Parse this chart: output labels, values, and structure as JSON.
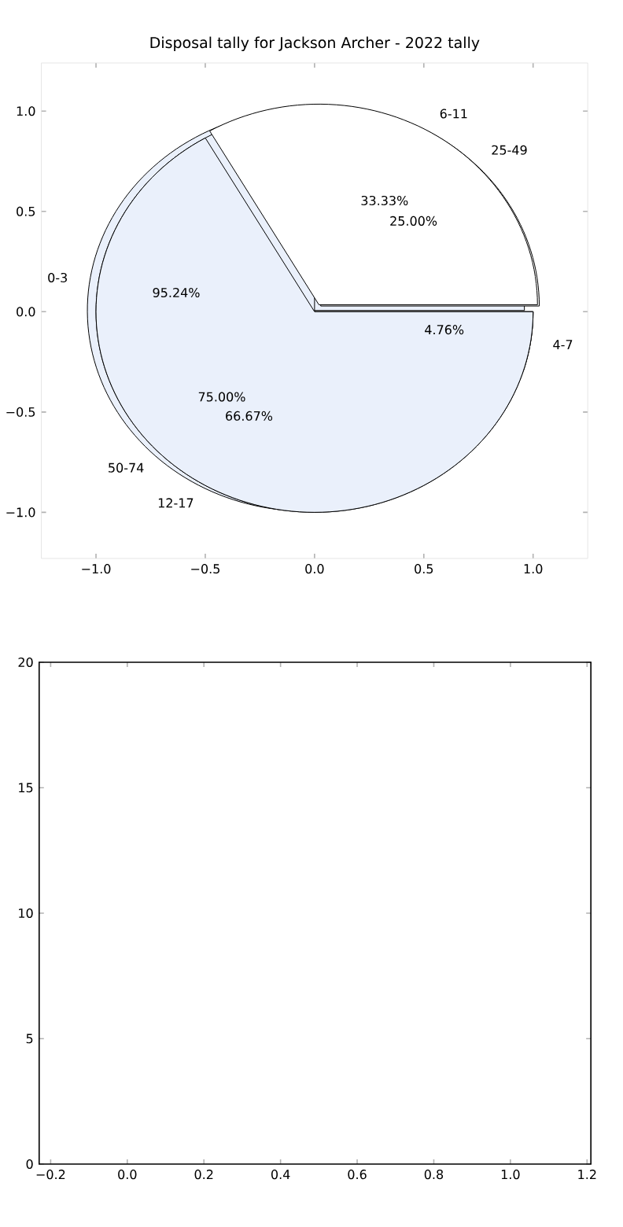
{
  "chart_data": [
    {
      "type": "scatter",
      "title": "Disposal tally for Jackson Archer - 2022 tally",
      "xlim": [
        -1.25,
        1.25
      ],
      "ylim": [
        -1.23,
        1.24
      ],
      "xticks": [
        {
          "value": -1.0,
          "label": "−1.0"
        },
        {
          "value": -0.5,
          "label": "−0.5"
        },
        {
          "value": 0.0,
          "label": "0.0"
        },
        {
          "value": 0.5,
          "label": "0.5"
        },
        {
          "value": 1.0,
          "label": "1.0"
        }
      ],
      "yticks": [
        {
          "value": -1.0,
          "label": "−1.0"
        },
        {
          "value": -0.5,
          "label": "−0.5"
        },
        {
          "value": 0.0,
          "label": "0.0"
        },
        {
          "value": 0.5,
          "label": "0.5"
        },
        {
          "value": 1.0,
          "label": "1.0"
        }
      ]
    },
    {
      "type": "pie",
      "categories": [
        "0-3",
        "4-7"
      ],
      "values": [
        95.24,
        4.76
      ],
      "value_labels": [
        "95.24%",
        "4.76%"
      ],
      "colors": [
        "#eaf0fb",
        "#eaf0fb"
      ]
    },
    {
      "type": "pie",
      "categories": [
        "25-49",
        "50-74"
      ],
      "values": [
        25.0,
        75.0
      ],
      "value_labels": [
        "25.00%",
        "75.00%"
      ],
      "colors": [
        "#ffffff",
        "#eaf0fb"
      ]
    },
    {
      "type": "pie",
      "categories": [
        "6-11",
        "12-17"
      ],
      "values": [
        33.33,
        66.67
      ],
      "value_labels": [
        "33.33%",
        "66.67%"
      ],
      "colors": [
        "#ffffff",
        "#eaf0fb"
      ]
    },
    {
      "type": "scatter",
      "xlim": [
        -0.23,
        1.21
      ],
      "ylim": [
        0,
        20
      ],
      "xticks": [
        {
          "value": -0.2,
          "label": "−0.2"
        },
        {
          "value": 0.0,
          "label": "0.0"
        },
        {
          "value": 0.2,
          "label": "0.2"
        },
        {
          "value": 0.4,
          "label": "0.4"
        },
        {
          "value": 0.6,
          "label": "0.6"
        },
        {
          "value": 0.8,
          "label": "0.8"
        },
        {
          "value": 1.0,
          "label": "1.0"
        },
        {
          "value": 1.2,
          "label": "1.2"
        }
      ],
      "yticks": [
        0,
        5,
        10,
        15,
        20
      ]
    }
  ]
}
